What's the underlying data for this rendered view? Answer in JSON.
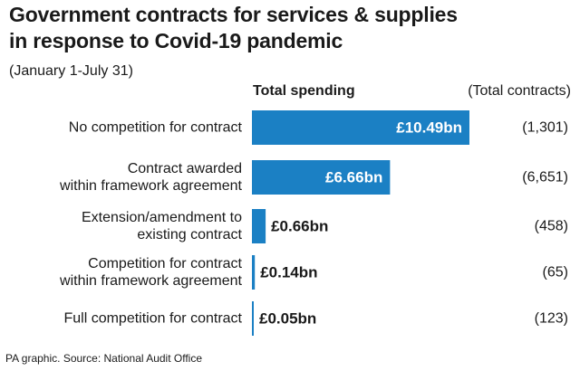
{
  "title_lines": [
    "Government contracts for services & supplies",
    "in response to Covid-19 pandemic"
  ],
  "subtitle": "(January 1-July 31)",
  "column_headers": {
    "spending": "Total spending",
    "contracts": "(Total contracts)"
  },
  "source": "PA graphic. Source: National Audit Office",
  "colors": {
    "bar": "#1b80c4",
    "text": "#1a1a1a",
    "label_inside": "#ffffff"
  },
  "chart_data": {
    "type": "bar",
    "orientation": "horizontal",
    "categories": [
      [
        "No competition for contract"
      ],
      [
        "Contract awarded",
        "within framework agreement"
      ],
      [
        "Extension/amendment to",
        "existing contract"
      ],
      [
        "Competition for contract",
        "within framework agreement"
      ],
      [
        "Full competition for contract"
      ]
    ],
    "values": [
      10.49,
      6.66,
      0.66,
      0.14,
      0.05
    ],
    "value_labels": [
      "£10.49bn",
      "£6.66bn",
      "£0.66bn",
      "£0.14bn",
      "£0.05bn"
    ],
    "contracts": [
      "(1,301)",
      "(6,651)",
      "(458)",
      "(65)",
      "(123)"
    ],
    "unit": "£bn",
    "xlim": [
      0,
      10.49
    ],
    "grid": false,
    "legend": "none"
  }
}
